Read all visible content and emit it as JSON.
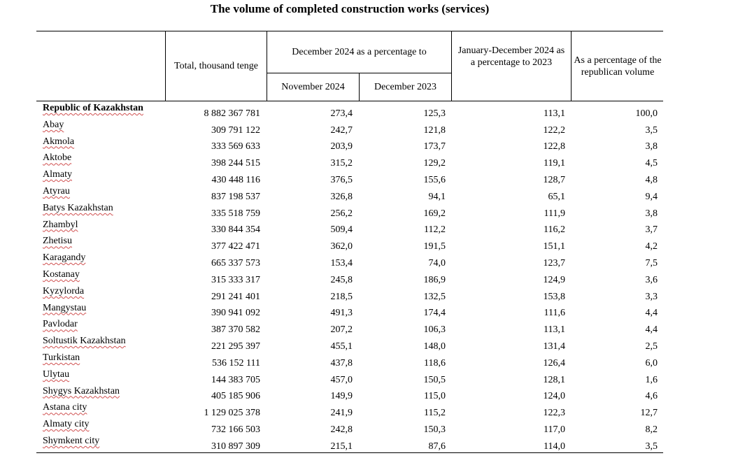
{
  "title": "The volume of completed construction works (services)",
  "header": {
    "total": "Total, thousand tenge",
    "dec_group": "December 2024 as a percentage to",
    "nov": "November 2024",
    "dec23": "December 2023",
    "jan_dec": "January-December 2024 as a percentage to 2023",
    "share": "As a percentage of the republican volume"
  },
  "rows": [
    {
      "region": "Republic of Kazakhstan",
      "total": "8 882 367 781",
      "nov": "273,4",
      "dec23": "125,3",
      "jan_dec": "113,1",
      "share": "100,0"
    },
    {
      "region": "Abay",
      "total": "309 791 122",
      "nov": "242,7",
      "dec23": "121,8",
      "jan_dec": "122,2",
      "share": "3,5"
    },
    {
      "region": "Akmola",
      "total": "333 569 633",
      "nov": "203,9",
      "dec23": "173,7",
      "jan_dec": "122,8",
      "share": "3,8"
    },
    {
      "region": "Aktobe",
      "total": "398 244 515",
      "nov": "315,2",
      "dec23": "129,2",
      "jan_dec": "119,1",
      "share": "4,5"
    },
    {
      "region": "Almaty",
      "total": "430 448 116",
      "nov": "376,5",
      "dec23": "155,6",
      "jan_dec": "128,7",
      "share": "4,8"
    },
    {
      "region": "Atyrau",
      "total": "837 198 537",
      "nov": "326,8",
      "dec23": "94,1",
      "jan_dec": "65,1",
      "share": "9,4"
    },
    {
      "region": "Batys Kazakhstan",
      "total": "335 518 759",
      "nov": "256,2",
      "dec23": "169,2",
      "jan_dec": "111,9",
      "share": "3,8"
    },
    {
      "region": "Zhambyl",
      "total": "330 844 354",
      "nov": "509,4",
      "dec23": "112,2",
      "jan_dec": "116,2",
      "share": "3,7"
    },
    {
      "region": "Zhetisu",
      "total": "377 422 471",
      "nov": "362,0",
      "dec23": "191,5",
      "jan_dec": "151,1",
      "share": "4,2"
    },
    {
      "region": "Karagandy",
      "total": "665 337 573",
      "nov": "153,4",
      "dec23": "74,0",
      "jan_dec": "123,7",
      "share": "7,5"
    },
    {
      "region": "Kostanay",
      "total": "315 333 317",
      "nov": "245,8",
      "dec23": "186,9",
      "jan_dec": "124,9",
      "share": "3,6"
    },
    {
      "region": "Kyzylorda",
      "total": "291 241 401",
      "nov": "218,5",
      "dec23": "132,5",
      "jan_dec": "153,8",
      "share": "3,3"
    },
    {
      "region": "Mangystau",
      "total": "390 941 092",
      "nov": "491,3",
      "dec23": "174,4",
      "jan_dec": "111,6",
      "share": "4,4"
    },
    {
      "region": "Pavlodar",
      "total": "387 370 582",
      "nov": "207,2",
      "dec23": "106,3",
      "jan_dec": "113,1",
      "share": "4,4"
    },
    {
      "region": "Soltustik Kazakhstan",
      "total": "221 295 397",
      "nov": "455,1",
      "dec23": "148,0",
      "jan_dec": "131,4",
      "share": "2,5"
    },
    {
      "region": "Turkistan",
      "total": "536 152 111",
      "nov": "437,8",
      "dec23": "118,6",
      "jan_dec": "126,4",
      "share": "6,0"
    },
    {
      "region": "Ulytau",
      "total": "144 383 705",
      "nov": "457,0",
      "dec23": "150,5",
      "jan_dec": "128,1",
      "share": "1,6"
    },
    {
      "region": "Shygys Kazakhstan",
      "total": "405 185 906",
      "nov": "149,9",
      "dec23": "115,0",
      "jan_dec": "124,0",
      "share": "4,6"
    },
    {
      "region": "Astana city",
      "total": "1 129 025 378",
      "nov": "241,9",
      "dec23": "115,2",
      "jan_dec": "122,3",
      "share": "12,7"
    },
    {
      "region": "Almaty city",
      "total": "732 166 503",
      "nov": "242,8",
      "dec23": "150,3",
      "jan_dec": "117,0",
      "share": "8,2"
    },
    {
      "region": "Shymkent city",
      "total": "310 897 309",
      "nov": "215,1",
      "dec23": "87,6",
      "jan_dec": "114,0",
      "share": "3,5"
    }
  ]
}
